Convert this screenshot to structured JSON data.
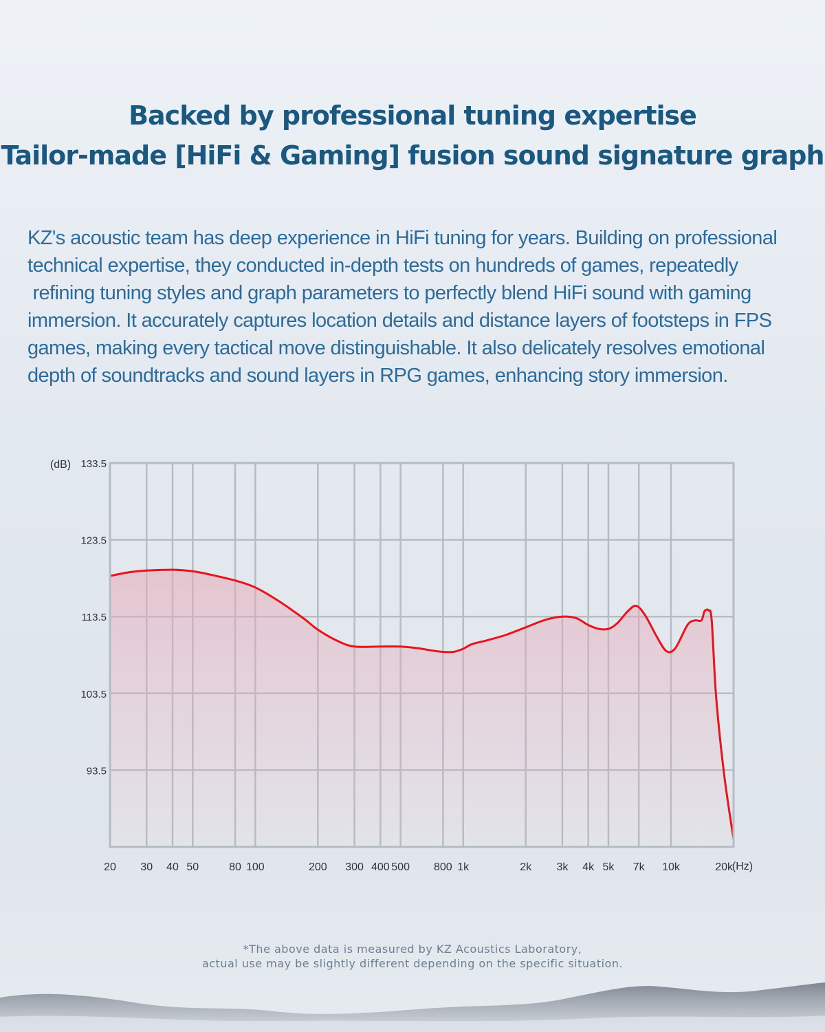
{
  "heading": {
    "line1": "Backed by professional tuning expertise",
    "line2": "Tailor-made [HiFi & Gaming] fusion sound signature graph"
  },
  "description": {
    "lines": [
      "KZ's acoustic team has deep experience in HiFi tuning for years. Building on professional",
      "technical expertise, they conducted in-depth tests on hundreds of games, repeatedly",
      " refining tuning styles and graph parameters to perfectly blend HiFi sound with gaming",
      "immersion. It accurately captures location details and distance layers of footsteps in FPS",
      "games, making every tactical move distinguishable. It also delicately resolves emotional",
      "depth of soundtracks and sound layers in RPG games, enhancing story immersion."
    ]
  },
  "disclaimer": {
    "line1": "*The above data is measured by KZ Acoustics Laboratory,",
    "line2": "actual use may be slightly different depending on the specific situation."
  },
  "chart_data": {
    "type": "line",
    "title": "",
    "xlabel": "(Hz)",
    "ylabel": "(dB)",
    "x_scale": "log",
    "xlim": [
      20,
      20000
    ],
    "ylim": [
      83.5,
      133.5
    ],
    "grid": true,
    "x_ticks": [
      {
        "value": 20,
        "label": "20"
      },
      {
        "value": 30,
        "label": "30"
      },
      {
        "value": 40,
        "label": "40"
      },
      {
        "value": 50,
        "label": "50"
      },
      {
        "value": 80,
        "label": "80"
      },
      {
        "value": 100,
        "label": "100"
      },
      {
        "value": 200,
        "label": "200"
      },
      {
        "value": 300,
        "label": "300"
      },
      {
        "value": 400,
        "label": "400"
      },
      {
        "value": 500,
        "label": "500"
      },
      {
        "value": 800,
        "label": "800"
      },
      {
        "value": 1000,
        "label": "1k"
      },
      {
        "value": 2000,
        "label": "2k"
      },
      {
        "value": 3000,
        "label": "3k"
      },
      {
        "value": 4000,
        "label": "4k"
      },
      {
        "value": 5000,
        "label": "5k"
      },
      {
        "value": 7000,
        "label": "7k"
      },
      {
        "value": 10000,
        "label": "10k"
      },
      {
        "value": 20000,
        "label": "20k"
      }
    ],
    "y_ticks": [
      {
        "value": 133.5,
        "label": "133.5"
      },
      {
        "value": 123.5,
        "label": "123.5"
      },
      {
        "value": 113.5,
        "label": "113.5"
      },
      {
        "value": 103.5,
        "label": "103.5"
      },
      {
        "value": 93.5,
        "label": "93.5"
      }
    ],
    "series": [
      {
        "color": "#e8141c",
        "fill": "#e5a9b6",
        "points": [
          [
            20,
            118.8
          ],
          [
            25,
            119.3
          ],
          [
            30,
            119.5
          ],
          [
            40,
            119.6
          ],
          [
            50,
            119.4
          ],
          [
            60,
            119.0
          ],
          [
            80,
            118.2
          ],
          [
            100,
            117.3
          ],
          [
            130,
            115.5
          ],
          [
            170,
            113.3
          ],
          [
            200,
            111.8
          ],
          [
            250,
            110.3
          ],
          [
            300,
            109.6
          ],
          [
            400,
            109.6
          ],
          [
            500,
            109.6
          ],
          [
            600,
            109.4
          ],
          [
            700,
            109.1
          ],
          [
            800,
            108.9
          ],
          [
            900,
            108.9
          ],
          [
            1000,
            109.3
          ],
          [
            1100,
            109.9
          ],
          [
            1300,
            110.4
          ],
          [
            1600,
            111.1
          ],
          [
            2000,
            112.1
          ],
          [
            2500,
            113.1
          ],
          [
            3000,
            113.5
          ],
          [
            3500,
            113.3
          ],
          [
            4000,
            112.4
          ],
          [
            4500,
            111.9
          ],
          [
            5000,
            111.9
          ],
          [
            5500,
            112.6
          ],
          [
            6200,
            114.2
          ],
          [
            6800,
            114.9
          ],
          [
            7500,
            113.7
          ],
          [
            8500,
            111.0
          ],
          [
            9500,
            109.0
          ],
          [
            10500,
            109.4
          ],
          [
            12000,
            112.4
          ],
          [
            13000,
            113.0
          ],
          [
            14000,
            113.0
          ],
          [
            14500,
            114.2
          ],
          [
            15200,
            114.3
          ],
          [
            15700,
            113.0
          ],
          [
            16500,
            103.0
          ],
          [
            18000,
            93.0
          ],
          [
            20000,
            84.5
          ]
        ]
      }
    ]
  }
}
